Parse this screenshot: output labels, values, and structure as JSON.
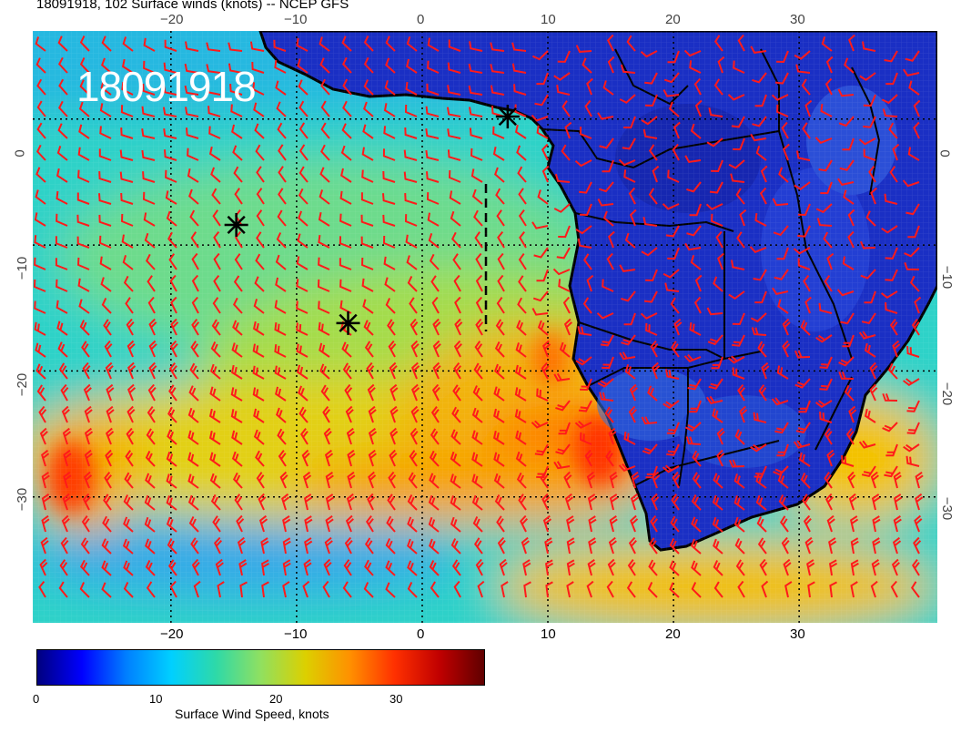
{
  "figure": {
    "title": "18091918, 102 Surface winds (knots) -- NCEP GFS",
    "stamp": "18091918"
  },
  "axes": {
    "x_ticks_bottom": [
      "−20",
      "−10",
      "0",
      "10",
      "20",
      "30"
    ],
    "x_ticks_top": [
      "−20",
      "−10",
      "0",
      "10",
      "20",
      "30"
    ],
    "y_ticks_left": [
      "0",
      "−10",
      "−20",
      "−30"
    ],
    "y_ticks_right": [
      "0",
      "−10",
      "−20",
      "−30"
    ],
    "lon_range": [
      -31,
      41
    ],
    "lat_range": [
      7,
      -40
    ],
    "gridlines": "dotted"
  },
  "markers": {
    "storm_symbol": "asterisk",
    "positions_lonlat": [
      [
        -14.8,
        -8.4
      ],
      [
        -5.9,
        -16.2
      ],
      [
        6.8,
        0.2
      ]
    ]
  },
  "colorbar": {
    "ticks": [
      "0",
      "10",
      "20",
      "30"
    ],
    "label": "Surface Wind Speed, knots",
    "range_knots": [
      0,
      37
    ],
    "colormap": [
      "#00007f",
      "#0000ff",
      "#0080ff",
      "#00d0ff",
      "#2ed9a8",
      "#90e060",
      "#dcd000",
      "#ff9000",
      "#ff3000",
      "#c00000",
      "#600000"
    ]
  },
  "style": {
    "barb_color": "#ff1a1a",
    "coast_color": "#000000",
    "grid_color": "#000000"
  }
}
